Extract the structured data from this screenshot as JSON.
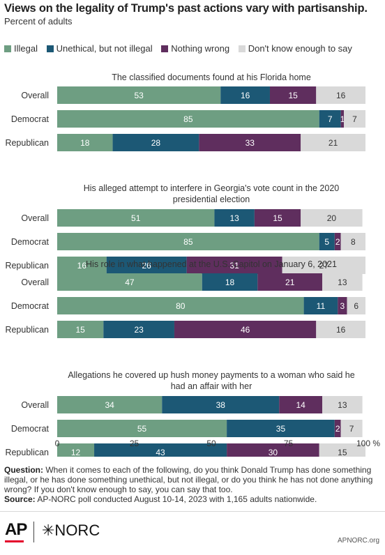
{
  "header": {
    "title": "Views on the legality of Trump's past actions vary with partisanship.",
    "subtitle": "Percent of adults"
  },
  "colors": {
    "illegal": "#6e9e82",
    "unethical": "#1c5875",
    "nothing_wrong": "#5f2e5e",
    "dont_know": "#d9d9d9",
    "dark_label": "#ffffff",
    "light_label": "#333333"
  },
  "chart_data": {
    "type": "bar",
    "orientation": "horizontal",
    "stacked": true,
    "xlim": [
      0,
      100
    ],
    "x_ticks": [
      "0",
      "25",
      "50",
      "75",
      "100 %"
    ],
    "legend": [
      {
        "key": "illegal",
        "label": "Illegal"
      },
      {
        "key": "unethical",
        "label": "Unethical, but not illegal"
      },
      {
        "key": "nothing_wrong",
        "label": "Nothing wrong"
      },
      {
        "key": "dont_know",
        "label": "Don't know enough to say"
      }
    ],
    "legend_position": "top",
    "groups": [
      {
        "title": [
          "The classified documents found at his Florida home"
        ],
        "rows": [
          {
            "label": "Overall",
            "values": [
              53,
              16,
              15,
              16
            ]
          },
          {
            "label": "Democrat",
            "values": [
              85,
              7,
              1,
              7
            ]
          },
          {
            "label": "Republican",
            "values": [
              18,
              28,
              33,
              21
            ]
          }
        ]
      },
      {
        "title": [
          "His alleged attempt to interfere in Georgia's vote count in the 2020",
          "presidential election"
        ],
        "rows": [
          {
            "label": "Overall",
            "values": [
              51,
              13,
              15,
              20
            ]
          },
          {
            "label": "Democrat",
            "values": [
              85,
              5,
              2,
              8
            ]
          },
          {
            "label": "Republican",
            "values": [
              16,
              26,
              31,
              27
            ]
          }
        ]
      },
      {
        "title": [
          "His role in what happened at the U.S. Capitol on January 6, 2021"
        ],
        "rows": [
          {
            "label": "Overall",
            "values": [
              47,
              18,
              21,
              13
            ]
          },
          {
            "label": "Democrat",
            "values": [
              80,
              11,
              3,
              6
            ]
          },
          {
            "label": "Republican",
            "values": [
              15,
              23,
              46,
              16
            ]
          }
        ]
      },
      {
        "title": [
          "Allegations he covered up hush money payments to a woman who said he",
          "had an affair with her"
        ],
        "rows": [
          {
            "label": "Overall",
            "values": [
              34,
              38,
              14,
              13
            ]
          },
          {
            "label": "Democrat",
            "values": [
              55,
              35,
              2,
              7
            ]
          },
          {
            "label": "Republican",
            "values": [
              12,
              43,
              30,
              15
            ]
          }
        ]
      }
    ]
  },
  "notes": {
    "question_label": "Question:",
    "question_text": " When it comes to each of the following, do you think Donald Trump has done something illegal, or he has done something unethical, but not illegal, or do you think he has not done anything wrong? If you don't know enough to say, you can say that too.",
    "source_label": "Source:",
    "source_text": " AP-NORC poll conducted August 10-14, 2023 with 1,165 adults nationwide."
  },
  "footer": {
    "ap_logo": "AP",
    "norc_logo": "✳NORC",
    "site": "APNORC.org"
  }
}
